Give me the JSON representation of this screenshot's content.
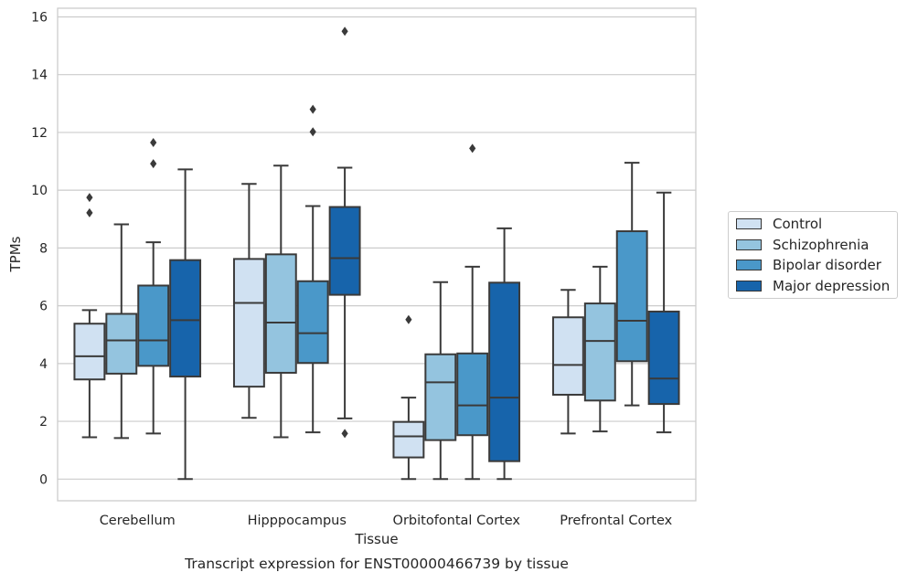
{
  "chart_data": {
    "type": "box",
    "title": "Transcript expression for ENST00000466739 by tissue",
    "xlabel": "Tissue",
    "ylabel": "TPMs",
    "ylim": [
      -0.75,
      16.3
    ],
    "yticks": [
      0,
      2,
      4,
      6,
      8,
      10,
      12,
      14,
      16
    ],
    "grid": true,
    "legend_position": "right",
    "categories": [
      "Cerebellum",
      "Hipppocampus",
      "Orbitofontal Cortex",
      "Prefrontal Cortex"
    ],
    "series": [
      {
        "name": "Control",
        "color": "#d0e1f2",
        "boxes": [
          {
            "whislo": 1.45,
            "q1": 3.45,
            "med": 4.25,
            "q3": 5.38,
            "whishi": 5.85,
            "fliers": [
              9.75,
              9.22
            ]
          },
          {
            "whislo": 2.12,
            "q1": 3.2,
            "med": 6.1,
            "q3": 7.62,
            "whishi": 10.22,
            "fliers": []
          },
          {
            "whislo": 0.0,
            "q1": 0.75,
            "med": 1.48,
            "q3": 1.98,
            "whishi": 2.82,
            "fliers": [
              5.52
            ]
          },
          {
            "whislo": 1.58,
            "q1": 2.92,
            "med": 3.95,
            "q3": 5.6,
            "whishi": 6.55,
            "fliers": []
          }
        ]
      },
      {
        "name": "Schizophrenia",
        "color": "#94c4df",
        "boxes": [
          {
            "whislo": 1.42,
            "q1": 3.65,
            "med": 4.8,
            "q3": 5.72,
            "whishi": 8.82,
            "fliers": []
          },
          {
            "whislo": 1.45,
            "q1": 3.68,
            "med": 5.42,
            "q3": 7.78,
            "whishi": 10.85,
            "fliers": []
          },
          {
            "whislo": 0.0,
            "q1": 1.35,
            "med": 3.35,
            "q3": 4.32,
            "whishi": 6.82,
            "fliers": []
          },
          {
            "whislo": 1.65,
            "q1": 2.72,
            "med": 4.78,
            "q3": 6.08,
            "whishi": 7.35,
            "fliers": []
          }
        ]
      },
      {
        "name": "Bipolar disorder",
        "color": "#4a98c9",
        "boxes": [
          {
            "whislo": 1.58,
            "q1": 3.92,
            "med": 4.8,
            "q3": 6.7,
            "whishi": 8.2,
            "fliers": [
              11.65,
              10.92
            ]
          },
          {
            "whislo": 1.62,
            "q1": 4.02,
            "med": 5.05,
            "q3": 6.85,
            "whishi": 9.45,
            "fliers": [
              12.8,
              12.02
            ]
          },
          {
            "whislo": 0.0,
            "q1": 1.52,
            "med": 2.55,
            "q3": 4.35,
            "whishi": 7.35,
            "fliers": [
              11.45
            ]
          },
          {
            "whislo": 2.55,
            "q1": 4.08,
            "med": 5.48,
            "q3": 8.58,
            "whishi": 10.95,
            "fliers": []
          }
        ]
      },
      {
        "name": "Major depression",
        "color": "#1764ab",
        "boxes": [
          {
            "whislo": 0.0,
            "q1": 3.55,
            "med": 5.5,
            "q3": 7.58,
            "whishi": 10.72,
            "fliers": []
          },
          {
            "whislo": 2.1,
            "q1": 6.38,
            "med": 7.65,
            "q3": 9.42,
            "whishi": 10.78,
            "fliers": [
              15.5,
              1.58
            ]
          },
          {
            "whislo": 0.0,
            "q1": 0.62,
            "med": 2.82,
            "q3": 6.8,
            "whishi": 8.68,
            "fliers": []
          },
          {
            "whislo": 1.62,
            "q1": 2.6,
            "med": 3.48,
            "q3": 5.8,
            "whishi": 9.92,
            "fliers": []
          }
        ]
      }
    ]
  }
}
